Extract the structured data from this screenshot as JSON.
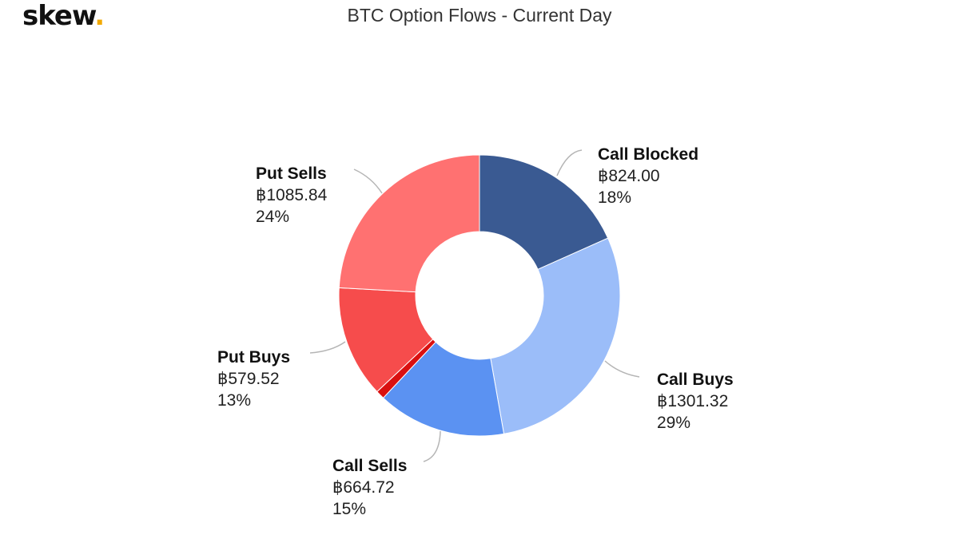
{
  "branding": {
    "logo_text": "skew",
    "logo_dot": ".",
    "logo_dot_color": "#f2a900"
  },
  "chart_data": {
    "type": "pie",
    "subtype": "donut",
    "title": "BTC Option Flows - Current Day",
    "slices": [
      {
        "label": "Call Blocked",
        "value": 824.0,
        "value_text": "฿824.00",
        "percent_text": "18%",
        "color": "#3a5a92"
      },
      {
        "label": "Call Buys",
        "value": 1301.32,
        "value_text": "฿1301.32",
        "percent_text": "29%",
        "color": "#9bbdf9"
      },
      {
        "label": "Call Sells",
        "value": 664.72,
        "value_text": "฿664.72",
        "percent_text": "15%",
        "color": "#5b92f2"
      },
      {
        "label": "",
        "value": 45,
        "value_text": "",
        "percent_text": "",
        "color": "#d91010"
      },
      {
        "label": "Put Buys",
        "value": 579.52,
        "value_text": "฿579.52",
        "percent_text": "13%",
        "color": "#f64c4c"
      },
      {
        "label": "Put Sells",
        "value": 1085.84,
        "value_text": "฿1085.84",
        "percent_text": "24%",
        "color": "#ff7171"
      }
    ]
  }
}
